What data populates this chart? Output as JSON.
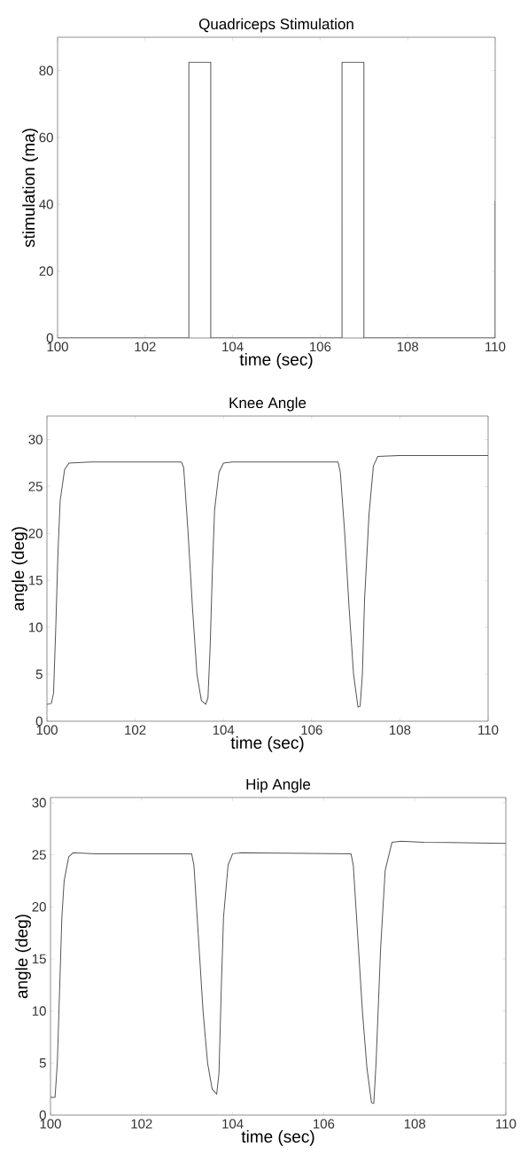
{
  "chart_data": [
    {
      "type": "line",
      "title": "Quadriceps Stimulation",
      "xlabel": "time (sec)",
      "ylabel": "stimulation (ma)",
      "color": "#555555",
      "xlim": [
        100,
        110
      ],
      "ylim": [
        0,
        90
      ],
      "xticks": [
        100,
        102,
        104,
        106,
        108,
        110
      ],
      "yticks": [
        0,
        20,
        40,
        60,
        80
      ],
      "x": [
        100,
        103,
        103,
        103.5,
        103.5,
        106.5,
        106.5,
        107,
        107,
        110,
        110
      ],
      "values": [
        0,
        0,
        82.5,
        82.5,
        0,
        0,
        82.5,
        82.5,
        0,
        0,
        41
      ]
    },
    {
      "type": "line",
      "title": "Knee Angle",
      "xlabel": "time (sec)",
      "ylabel": "angle (deg)",
      "color": "#555555",
      "xlim": [
        100,
        110
      ],
      "ylim": [
        0,
        32.5
      ],
      "xticks": [
        100,
        102,
        104,
        106,
        108,
        110
      ],
      "yticks": [
        0,
        5,
        10,
        15,
        20,
        25,
        30
      ],
      "x": [
        100,
        100.1,
        100.15,
        100.2,
        100.25,
        100.3,
        100.4,
        100.5,
        101,
        103.05,
        103.1,
        103.2,
        103.3,
        103.4,
        103.5,
        103.6,
        103.65,
        103.7,
        103.75,
        103.8,
        103.9,
        104,
        104.2,
        106.6,
        106.65,
        106.75,
        106.85,
        106.95,
        107.05,
        107.1,
        107.15,
        107.2,
        107.3,
        107.4,
        107.5,
        108,
        110
      ],
      "values": [
        1.8,
        1.9,
        3,
        10,
        18,
        23.5,
        26.8,
        27.5,
        27.6,
        27.6,
        27,
        20,
        12,
        5,
        2.2,
        1.8,
        2.5,
        8,
        16,
        22.5,
        26.5,
        27.5,
        27.6,
        27.6,
        26.5,
        20,
        12,
        5,
        1.5,
        1.6,
        5,
        13,
        22,
        27.2,
        28.2,
        28.3,
        28.3
      ]
    },
    {
      "type": "line",
      "title": "Hip Angle",
      "xlabel": "time (sec)",
      "ylabel": "angle (deg)",
      "color": "#555555",
      "xlim": [
        100,
        110
      ],
      "ylim": [
        0,
        30.5
      ],
      "xticks": [
        100,
        102,
        104,
        106,
        108,
        110
      ],
      "yticks": [
        0,
        5,
        10,
        15,
        20,
        25,
        30
      ],
      "x": [
        100,
        100.1,
        100.15,
        100.2,
        100.25,
        100.3,
        100.4,
        100.5,
        101,
        103.1,
        103.15,
        103.25,
        103.35,
        103.45,
        103.55,
        103.65,
        103.7,
        103.75,
        103.8,
        103.9,
        104,
        104.2,
        106.6,
        106.65,
        106.75,
        106.85,
        106.95,
        107.05,
        107.1,
        107.15,
        107.25,
        107.35,
        107.5,
        107.7,
        108.2,
        110
      ],
      "values": [
        1.7,
        1.7,
        5,
        12,
        19,
        22.5,
        24.8,
        25.2,
        25.1,
        25.1,
        24,
        17,
        10,
        5,
        2.5,
        2,
        4,
        12,
        19,
        24,
        25.1,
        25.2,
        25.1,
        24,
        17,
        10,
        4.5,
        1.2,
        1.1,
        5,
        16,
        23.5,
        26.2,
        26.3,
        26.2,
        26.1
      ]
    }
  ]
}
